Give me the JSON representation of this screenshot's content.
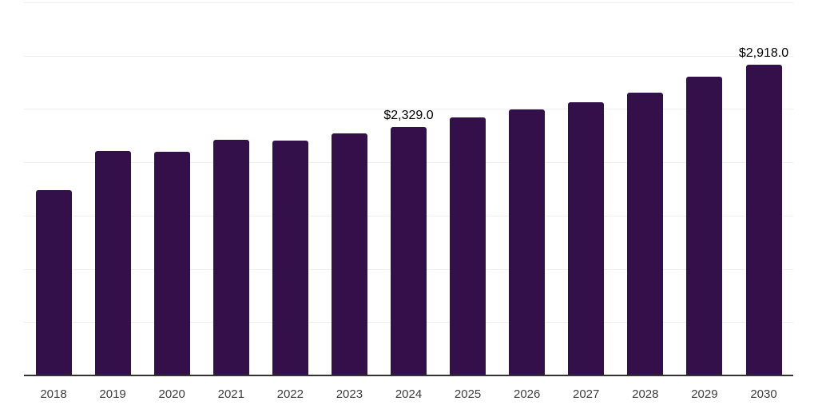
{
  "chart_data": {
    "type": "bar",
    "title": "",
    "xlabel": "",
    "ylabel": "",
    "categories": [
      "2018",
      "2019",
      "2020",
      "2021",
      "2022",
      "2023",
      "2024",
      "2025",
      "2026",
      "2027",
      "2028",
      "2029",
      "2030"
    ],
    "values": [
      1741,
      2108,
      2101,
      2211,
      2203,
      2270,
      2329,
      2420,
      2496,
      2566,
      2655,
      2805,
      2918
    ],
    "annotations": [
      {
        "category": "2024",
        "text": "$2,329.0"
      },
      {
        "category": "2030",
        "text": "$2,918.0"
      }
    ],
    "ylim": [
      0,
      3500
    ],
    "gridline_step": 500,
    "grid": "on",
    "legend": "none",
    "y_axis_labels_visible": false,
    "colors": {
      "bar": "#34104b",
      "gridline": "#efefef",
      "axis": "#333333",
      "tick_label": "#3d3d3d",
      "annotation": "#000000",
      "background": "#ffffff"
    }
  }
}
